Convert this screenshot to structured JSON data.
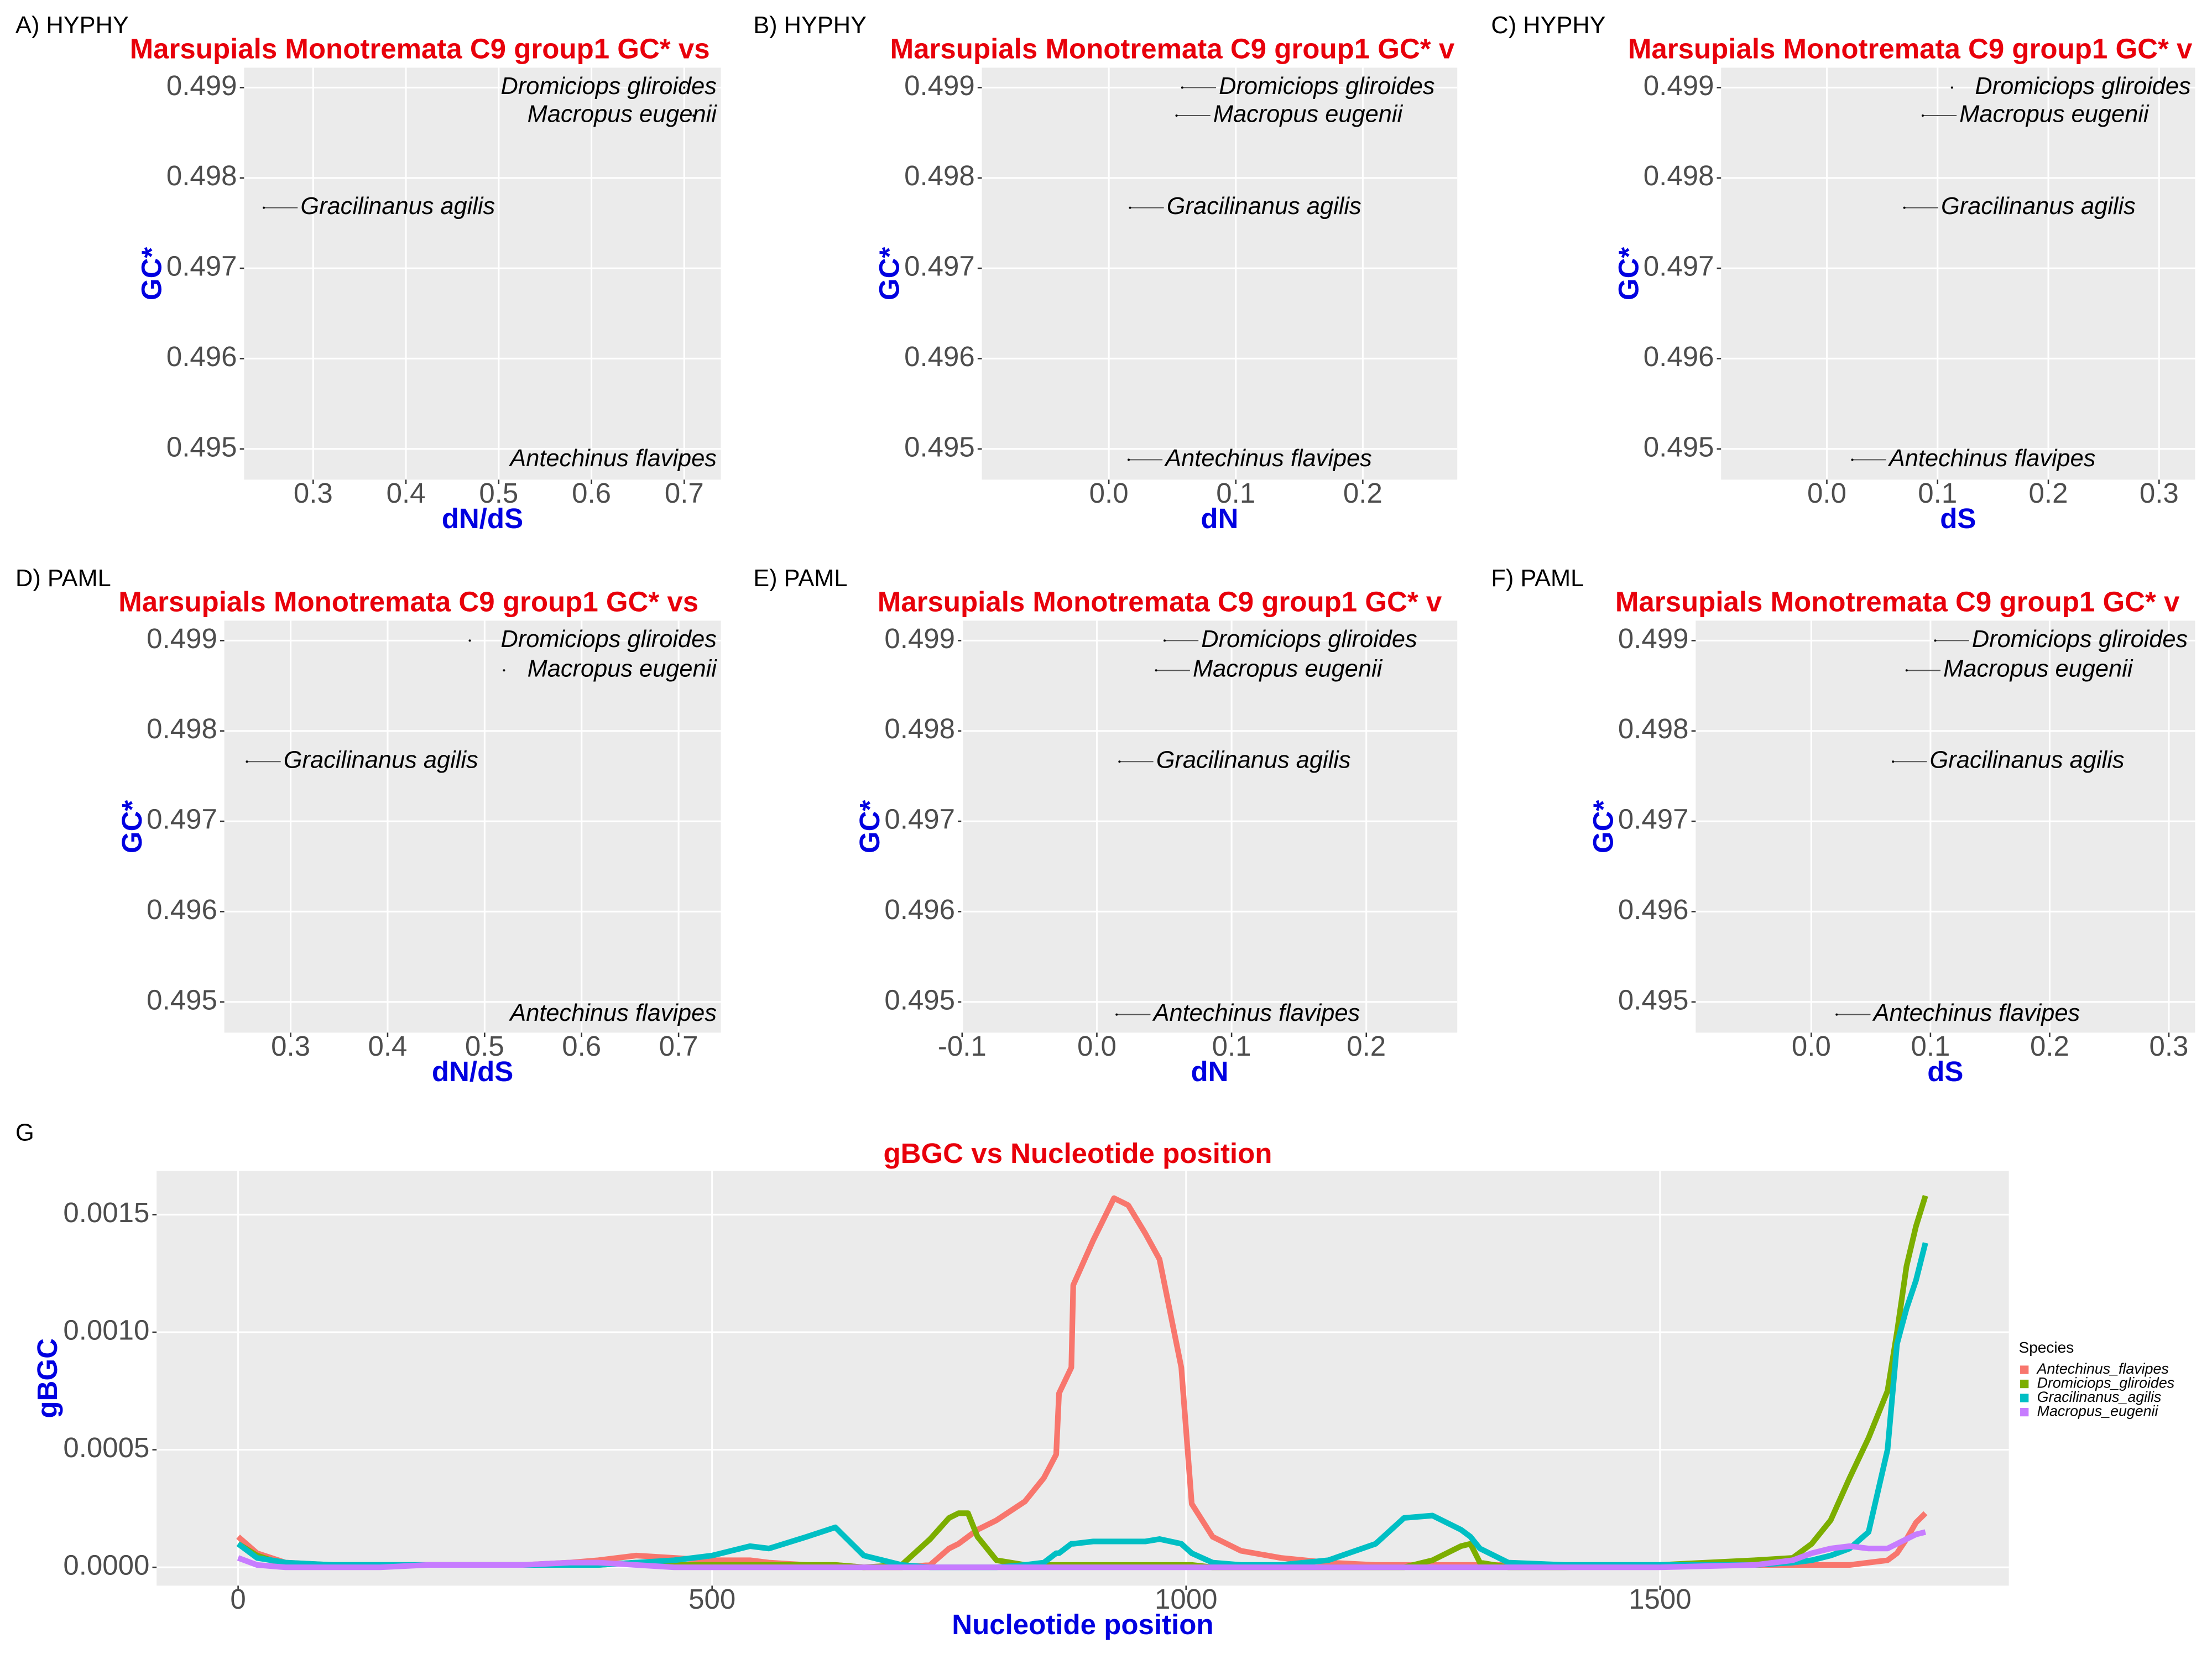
{
  "chart_data": [
    {
      "type": "scatter",
      "panel_label": "A) HYPHY",
      "title": "Marsupials Monotremata C9 group1 GC* vs",
      "xlabel": "dN/dS",
      "ylabel": "GC*",
      "point_labels": [
        "Dromiciops gliroides",
        "Macropus eugenii",
        "Gracilinanus agilis",
        "Antechinus flavipes"
      ],
      "x": [
        0.7,
        0.71,
        0.2468,
        0.72
      ],
      "values": [
        0.499,
        0.49869,
        0.49767,
        0.49488
      ],
      "color": "#000000",
      "xlim": [
        0.2255,
        0.7395
      ],
      "ylim": [
        0.49466,
        0.49922
      ],
      "xticks": [
        0.3,
        0.4,
        0.5,
        0.6,
        0.7
      ],
      "yticks": [
        0.495,
        0.496,
        0.497,
        0.498,
        0.499
      ],
      "grid": true
    },
    {
      "type": "scatter",
      "panel_label": "B) HYPHY",
      "title": "Marsupials Monotremata C9 group1 GC* v",
      "xlabel": "dN",
      "ylabel": "GC*",
      "point_labels": [
        "Dromiciops gliroides",
        "Macropus eugenii",
        "Gracilinanus agilis",
        "Antechinus flavipes"
      ],
      "x": [
        0.0578,
        0.0533,
        0.0167,
        0.0156
      ],
      "values": [
        0.499,
        0.49869,
        0.49767,
        0.49488
      ],
      "color": "#000000",
      "xlim": [
        -0.1,
        0.2744
      ],
      "ylim": [
        0.49466,
        0.49922
      ],
      "xticks": [
        {
          "value": 0,
          "label": "0.0"
        },
        0.1,
        0.2
      ],
      "yticks": [
        0.495,
        0.496,
        0.497,
        0.498,
        0.499
      ],
      "grid": true
    },
    {
      "type": "scatter",
      "panel_label": "C) HYPHY",
      "title": "Marsupials Monotremata C9 group1 GC* v",
      "xlabel": "dS",
      "ylabel": "GC*",
      "point_labels": [
        "Dromiciops gliroides",
        "Macropus eugenii",
        "Gracilinanus agilis",
        "Antechinus flavipes"
      ],
      "x": [
        0.113,
        0.0866,
        0.07,
        0.023
      ],
      "values": [
        0.499,
        0.49869,
        0.49767,
        0.49488
      ],
      "color": "#000000",
      "xlim": [
        -0.0955,
        0.3325
      ],
      "ylim": [
        0.49466,
        0.49922
      ],
      "xticks": [
        {
          "value": 0,
          "label": "0.0"
        },
        0.1,
        0.2,
        0.3
      ],
      "yticks": [
        0.495,
        0.496,
        0.497,
        0.498,
        0.499
      ],
      "grid": true
    },
    {
      "type": "scatter",
      "panel_label": "D) PAML",
      "title": "Marsupials Monotremata C9 group1 GC* vs",
      "xlabel": "dN/dS",
      "ylabel": "GC*",
      "point_labels": [
        "Dromiciops gliroides",
        "Macropus eugenii",
        "Gracilinanus agilis",
        "Antechinus flavipes"
      ],
      "x": [
        0.4847,
        0.52,
        0.2549,
        0.72
      ],
      "values": [
        0.499,
        0.49867,
        0.49766,
        0.49486
      ],
      "color": "#000000",
      "xlim": [
        0.2316,
        0.7436
      ],
      "ylim": [
        0.49466,
        0.49922
      ],
      "xticks": [
        0.3,
        0.4,
        0.5,
        0.6,
        0.7
      ],
      "yticks": [
        0.495,
        0.496,
        0.497,
        0.498,
        0.499
      ],
      "grid": true
    },
    {
      "type": "scatter",
      "panel_label": "E) PAML",
      "title": "Marsupials Monotremata C9 group1 GC* v",
      "xlabel": "dN",
      "ylabel": "GC*",
      "point_labels": [
        "Dromiciops gliroides",
        "Macropus eugenii",
        "Gracilinanus agilis",
        "Antechinus flavipes"
      ],
      "x": [
        0.0503,
        0.044,
        0.0168,
        0.0147
      ],
      "values": [
        0.499,
        0.49867,
        0.49766,
        0.49486
      ],
      "color": "#000000",
      "xlim": [
        -0.1,
        0.2675
      ],
      "ylim": [
        0.49466,
        0.49922
      ],
      "xticks": [
        -0.1,
        {
          "value": 0,
          "label": "0.0"
        },
        0.1,
        0.2
      ],
      "yticks": [
        0.495,
        0.496,
        0.497,
        0.498,
        0.499
      ],
      "grid": true
    },
    {
      "type": "scatter",
      "panel_label": "F) PAML",
      "title": "Marsupials Monotremata C9 group1 GC* v",
      "xlabel": "dS",
      "ylabel": "GC*",
      "point_labels": [
        "Dromiciops gliroides",
        "Macropus eugenii",
        "Gracilinanus agilis",
        "Antechinus flavipes"
      ],
      "x": [
        0.104,
        0.08,
        0.0686,
        0.0213
      ],
      "values": [
        0.499,
        0.49867,
        0.49766,
        0.49486
      ],
      "color": "#000000",
      "xlim": [
        -0.097,
        0.322
      ],
      "ylim": [
        0.49466,
        0.49922
      ],
      "xticks": [
        {
          "value": 0,
          "label": "0.0"
        },
        0.1,
        0.2,
        0.3
      ],
      "yticks": [
        0.495,
        0.496,
        0.497,
        0.498,
        0.499
      ],
      "grid": true
    },
    {
      "type": "line",
      "panel_label": "G",
      "title": "gBGC vs Nucleotide position",
      "xlabel": "Nucleotide position",
      "ylabel": "gBGC",
      "legend_title": "Species",
      "legend": "right",
      "x": [
        0,
        20,
        50,
        100,
        150,
        200,
        250,
        300,
        350,
        380,
        420,
        460,
        500,
        540,
        560,
        600,
        630,
        660,
        700,
        730,
        750,
        760,
        770,
        780,
        800,
        830,
        850,
        863,
        866,
        879,
        881,
        902,
        924,
        939,
        957,
        972,
        995,
        1006,
        1028,
        1058,
        1100,
        1150,
        1200,
        1230,
        1260,
        1290,
        1300,
        1310,
        1340,
        1400,
        1500,
        1600,
        1640,
        1660,
        1680,
        1700,
        1720,
        1740,
        1750,
        1760,
        1770,
        1780
      ],
      "series": [
        {
          "name": "Antechinus_flavipes",
          "color": "#F8766D",
          "values": [
            0.00013,
            6e-05,
            2e-05,
            1e-05,
            1e-05,
            1e-05,
            1e-05,
            1e-05,
            2e-05,
            3e-05,
            5e-05,
            4e-05,
            3e-05,
            3e-05,
            2e-05,
            1e-05,
            1e-05,
            0,
            0,
            1e-05,
            8e-05,
            0.0001,
            0.00013,
            0.00016,
            0.0002,
            0.00028,
            0.00038,
            0.00048,
            0.00074,
            0.00085,
            0.0012,
            0.00139,
            0.00157,
            0.00154,
            0.00142,
            0.00131,
            0.00085,
            0.00027,
            0.00013,
            7e-05,
            4e-05,
            2e-05,
            1e-05,
            1e-05,
            1e-05,
            1e-05,
            1e-05,
            1e-05,
            1e-05,
            1e-05,
            1e-05,
            1e-05,
            1e-05,
            1e-05,
            1e-05,
            1e-05,
            2e-05,
            3e-05,
            6e-05,
            0.00012,
            0.00019,
            0.00023
          ]
        },
        {
          "name": "Dromiciops_gliroides",
          "color": "#7CAE00",
          "values": [
            0.0001,
            5e-05,
            1e-05,
            1e-05,
            1e-05,
            1e-05,
            1e-05,
            1e-05,
            1e-05,
            1e-05,
            2e-05,
            1e-05,
            1e-05,
            1e-05,
            1e-05,
            1e-05,
            1e-05,
            0,
            1e-05,
            0.00012,
            0.00021,
            0.00023,
            0.00023,
            0.00013,
            3e-05,
            1e-05,
            1e-05,
            1e-05,
            1e-05,
            1e-05,
            1e-05,
            1e-05,
            1e-05,
            1e-05,
            1e-05,
            1e-05,
            1e-05,
            1e-05,
            0,
            0,
            0,
            0,
            0,
            0,
            3e-05,
            9e-05,
            0.0001,
            2e-05,
            0,
            0,
            1e-05,
            3e-05,
            4e-05,
            0.0001,
            0.0002,
            0.00038,
            0.00055,
            0.00075,
            0.001,
            0.00128,
            0.00145,
            0.00158
          ]
        },
        {
          "name": "Gracilinanus_agilis",
          "color": "#00BFC4",
          "values": [
            0.0001,
            4e-05,
            2e-05,
            1e-05,
            1e-05,
            1e-05,
            1e-05,
            1e-05,
            1e-05,
            1e-05,
            2e-05,
            3e-05,
            5e-05,
            9e-05,
            8e-05,
            0.00013,
            0.00017,
            5e-05,
            1e-05,
            0,
            0,
            0,
            0,
            0,
            0,
            1e-05,
            2e-05,
            6e-05,
            6e-05,
            0.0001,
            0.0001,
            0.00011,
            0.00011,
            0.00011,
            0.00011,
            0.00012,
            0.0001,
            6e-05,
            2e-05,
            1e-05,
            1e-05,
            3e-05,
            0.0001,
            0.00021,
            0.00022,
            0.00016,
            0.00013,
            8e-05,
            2e-05,
            1e-05,
            1e-05,
            1e-05,
            2e-05,
            3e-05,
            5e-05,
            8e-05,
            0.00015,
            0.0005,
            0.00095,
            0.0011,
            0.00122,
            0.00138
          ]
        },
        {
          "name": "Macropus_eugenii",
          "color": "#C77CFF",
          "values": [
            4e-05,
            1e-05,
            0,
            0,
            0,
            1e-05,
            1e-05,
            1e-05,
            2e-05,
            2e-05,
            1e-05,
            0,
            0,
            0,
            0,
            0,
            0,
            0,
            0,
            0,
            0,
            0,
            0,
            0,
            0,
            0,
            0,
            0,
            0,
            0,
            0,
            0,
            0,
            0,
            0,
            0,
            0,
            0,
            0,
            0,
            0,
            0,
            0,
            0,
            0,
            0,
            0,
            0,
            0,
            0,
            0,
            1e-05,
            3e-05,
            6e-05,
            8e-05,
            9e-05,
            8e-05,
            8e-05,
            0.0001,
            0.00012,
            0.00014,
            0.00015
          ]
        }
      ],
      "xlim": [
        -86,
        1868
      ],
      "ylim": [
        -7.8e-05,
        0.001686
      ],
      "xticks": [
        0,
        500,
        1000,
        1500
      ],
      "yticks": [
        {
          "value": 0,
          "label": "0.0000"
        },
        {
          "value": 0.0005,
          "label": "0.0005"
        },
        {
          "value": 0.001,
          "label": "0.0010"
        },
        {
          "value": 0.0015,
          "label": "0.0015"
        }
      ],
      "grid": true
    }
  ]
}
